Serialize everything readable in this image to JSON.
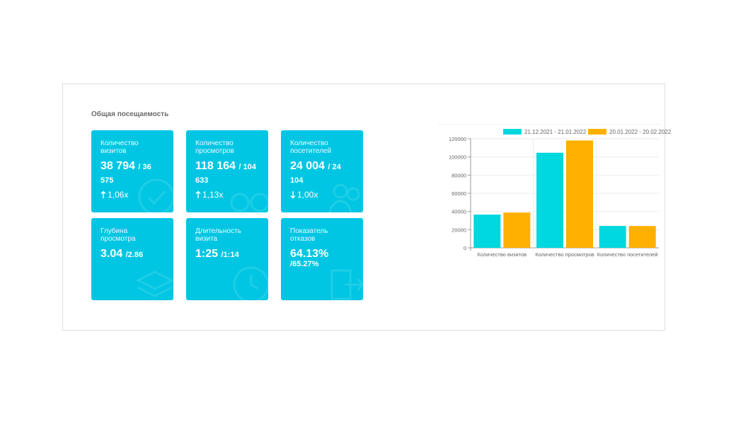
{
  "panel": {
    "title": "Общая посещаемость"
  },
  "tiles": [
    {
      "label": "Количество визитов",
      "value": "38 794",
      "compare": "/ 36 575",
      "trend_dir": "up",
      "trend": "1,06x",
      "icon": "check-circle-icon"
    },
    {
      "label": "Количество просмотров",
      "value": "118 164",
      "compare": "/ 104 633",
      "trend_dir": "up",
      "trend": "1,13x",
      "icon": "glasses-icon"
    },
    {
      "label": "Количество посетителей",
      "value": "24 004",
      "compare": "/ 24 104",
      "trend_dir": "down",
      "trend": "1,00x",
      "icon": "users-icon"
    },
    {
      "label": "Глубина просмотра",
      "value": "3.04",
      "compare": "/2.86",
      "icon": "layers-icon"
    },
    {
      "label": "Длительность визита",
      "value": "1:25",
      "compare": "/1:14",
      "icon": "clock-icon"
    },
    {
      "label": "Показатель отказов",
      "value": "64.13%",
      "compare": "/65.27%",
      "icon": "exit-icon"
    }
  ],
  "chart_data": {
    "type": "bar",
    "categories": [
      "Количество визитов",
      "Количество просмотров",
      "Количество посетителей"
    ],
    "series": [
      {
        "name": "21.12.2021 - 21.01.2022",
        "color": "#00d8e0",
        "values": [
          36575,
          104633,
          24104
        ]
      },
      {
        "name": "20.01.2022 - 20.02.2022",
        "color": "#ffb000",
        "values": [
          38794,
          118164,
          24004
        ]
      }
    ],
    "ylim": [
      0,
      120000
    ],
    "yticks": [
      0,
      20000,
      40000,
      60000,
      80000,
      100000,
      120000
    ],
    "grid": true,
    "legend": "top",
    "title": "",
    "xlabel": "",
    "ylabel": ""
  }
}
